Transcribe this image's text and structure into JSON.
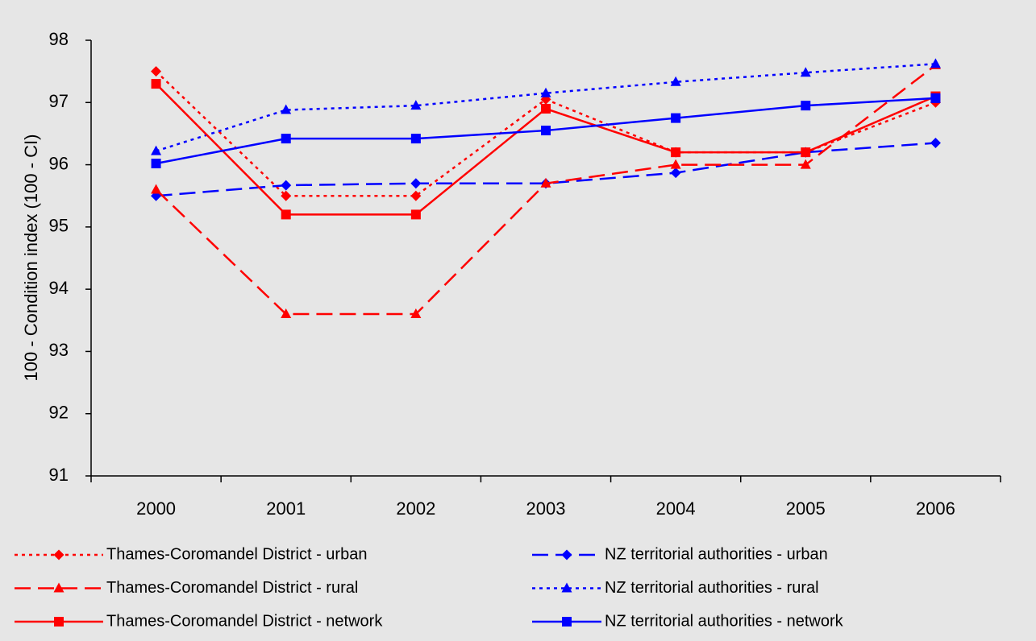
{
  "chart_data": {
    "type": "line",
    "y_label": "100 - Condition index  (100 - CI)",
    "categories": [
      "2000",
      "2001",
      "2002",
      "2003",
      "2004",
      "2005",
      "2006"
    ],
    "ylim": [
      91,
      98
    ],
    "yticks": [
      91,
      92,
      93,
      94,
      95,
      96,
      97,
      98
    ],
    "grid": false,
    "series": [
      {
        "name": "Thames-Coromandel District - urban",
        "color": "#ff0000",
        "dash": "dotted",
        "marker": "diamond",
        "values": [
          97.5,
          95.5,
          95.5,
          97.05,
          96.2,
          96.2,
          97.0
        ]
      },
      {
        "name": "NZ territorial authorities - urban",
        "color": "#0000ff",
        "dash": "dashed",
        "marker": "diamond",
        "values": [
          95.5,
          95.67,
          95.7,
          95.7,
          95.87,
          96.2,
          96.35
        ]
      },
      {
        "name": "Thames-Coromandel District - rural",
        "color": "#ff0000",
        "dash": "dashed",
        "marker": "triangle",
        "values": [
          95.6,
          93.6,
          93.6,
          95.7,
          96.0,
          96.0,
          97.6
        ]
      },
      {
        "name": "NZ territorial authorities - rural",
        "color": "#0000ff",
        "dash": "dotted",
        "marker": "triangle",
        "values": [
          96.22,
          96.88,
          96.95,
          97.15,
          97.33,
          97.48,
          97.62
        ]
      },
      {
        "name": "Thames-Coromandel District - network",
        "color": "#ff0000",
        "dash": "solid",
        "marker": "square",
        "values": [
          97.3,
          95.2,
          95.2,
          96.9,
          96.2,
          96.2,
          97.1
        ]
      },
      {
        "name": "NZ territorial authorities - network",
        "color": "#0000ff",
        "dash": "solid",
        "marker": "square",
        "values": [
          96.02,
          96.42,
          96.42,
          96.55,
          96.75,
          96.95,
          97.07
        ]
      }
    ]
  }
}
